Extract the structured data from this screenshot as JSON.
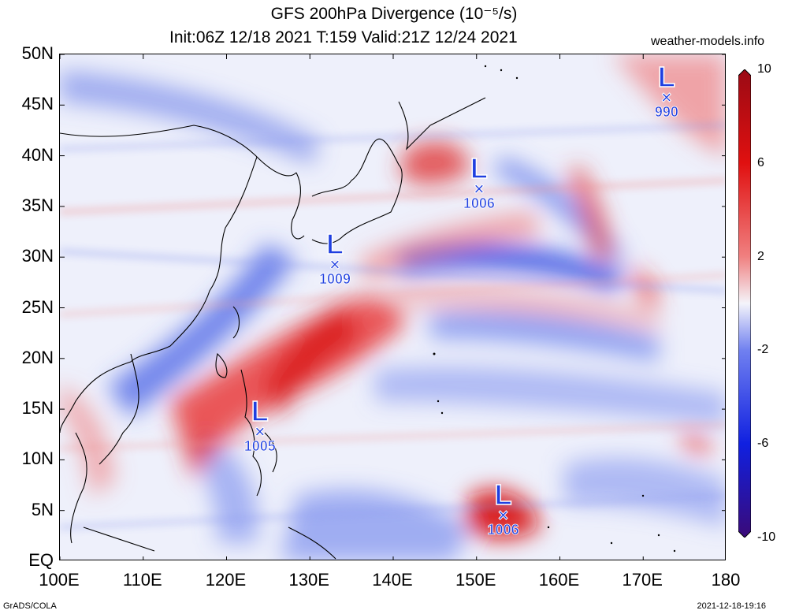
{
  "title": {
    "line1": "GFS 200hPa Divergence (10⁻⁵/s)",
    "line2": "Init:06Z 12/18 2021 T:159 Valid:21Z 12/24 2021"
  },
  "site": "weather-models.info",
  "axes": {
    "lat_labels": [
      "50N",
      "45N",
      "40N",
      "35N",
      "30N",
      "25N",
      "20N",
      "15N",
      "10N",
      "5N",
      "EQ"
    ],
    "lon_labels": [
      "100E",
      "110E",
      "120E",
      "130E",
      "140E",
      "150E",
      "160E",
      "170E",
      "180"
    ],
    "lat_range": [
      0,
      50
    ],
    "lon_range": [
      100,
      180
    ]
  },
  "colorbar": {
    "labels": [
      "10",
      "6",
      "2",
      "-2",
      "-6",
      "-10"
    ],
    "range": [
      -10,
      10
    ],
    "colors": [
      "#3a0a78",
      "#1020e0",
      "#7080f0",
      "#f0f0f8",
      "#f08080",
      "#e01010",
      "#9a0a14"
    ]
  },
  "lows": [
    {
      "symbol": "L",
      "mark": "×",
      "pressure": "990",
      "lon": 172.8,
      "lat": 45.5
    },
    {
      "symbol": "L",
      "mark": "×",
      "pressure": "1006",
      "lon": 150.3,
      "lat": 36.5
    },
    {
      "symbol": "L",
      "mark": "×",
      "pressure": "1009",
      "lon": 133.0,
      "lat": 29.0
    },
    {
      "symbol": "L",
      "mark": "×",
      "pressure": "1005",
      "lon": 124.0,
      "lat": 12.5
    },
    {
      "symbol": "L",
      "mark": "×",
      "pressure": "1006",
      "lon": 153.2,
      "lat": 4.3
    }
  ],
  "footer": {
    "left": "GrADS/COLA",
    "right": "2021-12-18-19:16"
  }
}
